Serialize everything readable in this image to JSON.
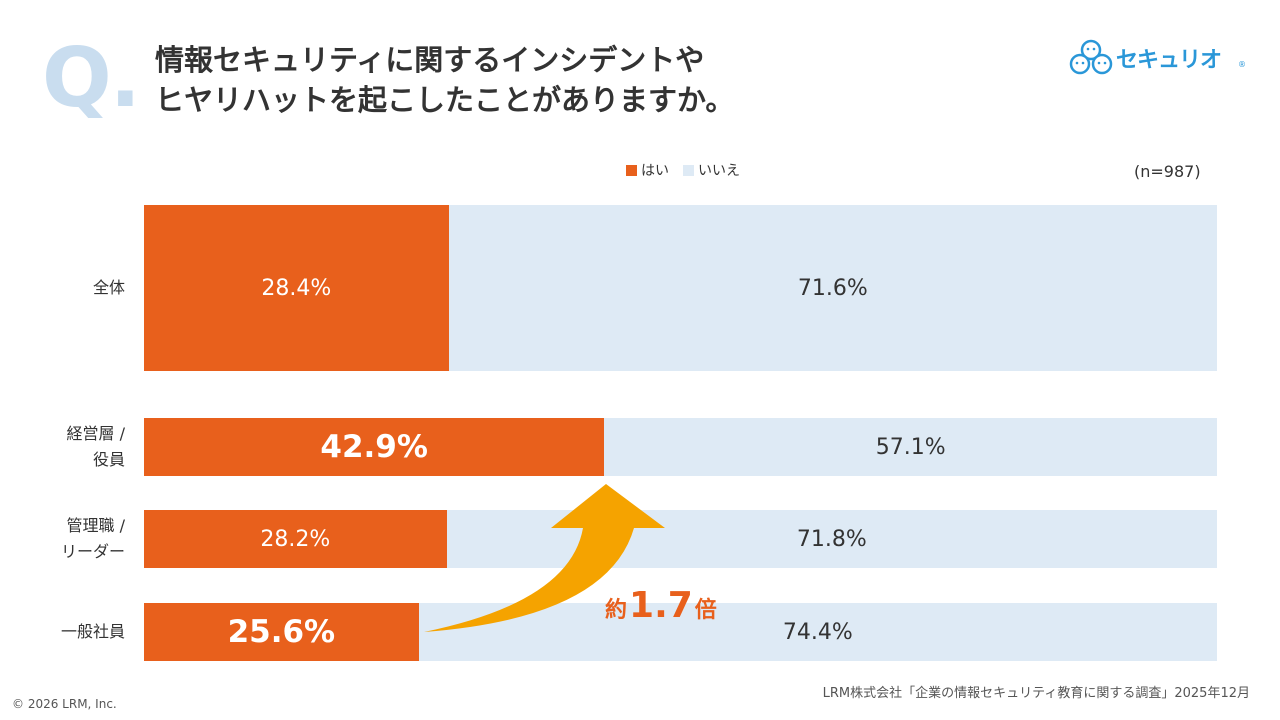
{
  "header": {
    "q_mark": "Q.",
    "title": "情報セキュリティに関するインシデントや\nヒヤリハットを起こしたことがありますか。",
    "logo_text": "セキュリオ",
    "logo_reg": "®"
  },
  "sample_size": "(n=987)",
  "colors": {
    "yes": "#e8601c",
    "no": "#deeaf5",
    "accent": "#f5a300",
    "brand": "#2a97d8"
  },
  "chart_data": {
    "type": "bar",
    "orientation": "horizontal-stacked-100",
    "categories": [
      "全体",
      "経営層 /\n役員",
      "管理職 /\nリーダー",
      "一般社員"
    ],
    "series": [
      {
        "name": "はい",
        "values": [
          28.4,
          42.9,
          28.2,
          25.6
        ],
        "labels": [
          "28.4%",
          "42.9%",
          "28.2%",
          "25.6%"
        ]
      },
      {
        "name": "いいえ",
        "values": [
          71.6,
          57.1,
          71.8,
          74.4
        ],
        "labels": [
          "71.6%",
          "57.1%",
          "71.8%",
          "74.4%"
        ]
      }
    ],
    "emphasized_labels": [
      "42.9%",
      "25.6%"
    ],
    "legend": "top-center",
    "annotation": {
      "prefix": "約",
      "value": "1.7",
      "suffix": "倍"
    },
    "xlim": [
      0,
      100
    ]
  },
  "footer": {
    "source": "LRM株式会社「企業の情報セキュリティ教育に関する調査」2025年12月",
    "copyright": "© 2026 LRM, Inc."
  }
}
